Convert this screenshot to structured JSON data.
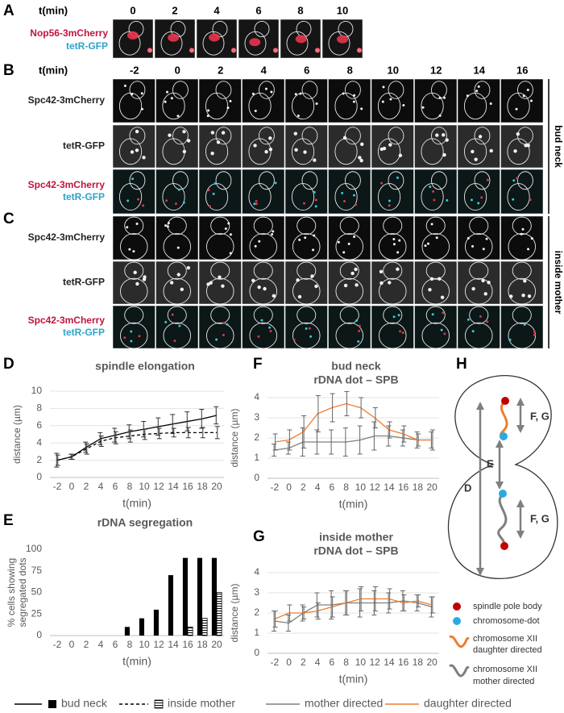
{
  "panels": {
    "A": {
      "letter": "A",
      "time_label": "t(min)",
      "times": [
        0,
        2,
        4,
        6,
        8,
        10
      ],
      "channels": [
        "Nop56-3mCherry",
        "tetR-GFP"
      ]
    },
    "B": {
      "letter": "B",
      "time_label": "t(min)",
      "times": [
        -2,
        0,
        2,
        4,
        6,
        8,
        10,
        12,
        14,
        16
      ],
      "rows": [
        [
          "Spc42-3mCherry"
        ],
        [
          "tetR-GFP"
        ],
        [
          "Spc42-3mCherry",
          "tetR-GFP"
        ]
      ],
      "side_label": "bud neck"
    },
    "C": {
      "letter": "C",
      "rows": [
        [
          "Spc42-3mCherry"
        ],
        [
          "tetR-GFP"
        ],
        [
          "Spc42-3mCherry",
          "tetR-GFP"
        ]
      ],
      "side_label": "inside mother"
    }
  },
  "chart_data": [
    {
      "type": "line",
      "panel": "D",
      "title": "spindle elongation",
      "y_label": [
        "distance (µm)"
      ],
      "x_label": "t(min)",
      "categories": [
        -2,
        0,
        2,
        4,
        6,
        8,
        10,
        12,
        14,
        16,
        18,
        20
      ],
      "ylim": [
        0,
        10
      ],
      "yticks": [
        0,
        2,
        4,
        6,
        8,
        10
      ],
      "grid": true,
      "series": [
        {
          "name": "bud neck",
          "color": "#000000",
          "dash": false,
          "values": [
            2.0,
            2.4,
            3.5,
            4.5,
            4.9,
            5.3,
            5.6,
            5.9,
            6.2,
            6.5,
            6.8,
            7.2
          ],
          "errors": [
            0.8,
            0.3,
            0.6,
            0.7,
            0.8,
            0.8,
            0.9,
            1.0,
            1.1,
            1.1,
            1.1,
            1.0
          ]
        },
        {
          "name": "inside mother",
          "color": "#000000",
          "dash": true,
          "values": [
            2.0,
            2.4,
            3.3,
            4.2,
            4.6,
            4.8,
            5.0,
            5.1,
            5.2,
            5.2,
            5.2,
            5.2
          ],
          "errors": [
            0.6,
            0.3,
            0.6,
            0.6,
            0.7,
            0.7,
            0.6,
            0.6,
            0.5,
            0.6,
            0.6,
            0.7
          ]
        }
      ]
    },
    {
      "type": "bar",
      "panel": "E",
      "title": "rDNA segregation",
      "y_label": [
        "% cells showing",
        "segregated dots"
      ],
      "x_label": "t(min)",
      "categories": [
        -2,
        0,
        2,
        4,
        6,
        8,
        10,
        12,
        14,
        16,
        18,
        20
      ],
      "ylim": [
        0,
        100
      ],
      "yticks": [
        0,
        25,
        50,
        75,
        100
      ],
      "grid": false,
      "series": [
        {
          "color": "#000000",
          "pattern": "solid",
          "values": [
            0,
            0,
            0,
            0,
            0,
            10,
            20,
            30,
            70,
            90,
            90,
            90
          ]
        },
        {
          "color": "#000000",
          "pattern": "hatch",
          "values": [
            0,
            0,
            0,
            0,
            0,
            0,
            0,
            0,
            0,
            10,
            20,
            50
          ]
        }
      ]
    },
    {
      "type": "line",
      "panel": "F",
      "title": "bud neck",
      "subtitle": "rDNA dot – SPB",
      "y_label": [
        "distance (µm)"
      ],
      "x_label": "t(min)",
      "categories": [
        -2,
        0,
        2,
        4,
        6,
        8,
        10,
        12,
        14,
        16,
        18,
        20
      ],
      "ylim": [
        0,
        4
      ],
      "yticks": [
        0,
        1,
        2,
        3,
        4
      ],
      "grid": true,
      "series": [
        {
          "name": "mother directed",
          "color": "#7f7f7f",
          "dash": false,
          "values": [
            1.4,
            1.5,
            1.8,
            1.8,
            1.8,
            1.8,
            1.9,
            2.1,
            2.1,
            2.0,
            1.9,
            1.9
          ],
          "errors": [
            0.3,
            0.3,
            0.7,
            0.6,
            0.6,
            0.7,
            0.7,
            0.7,
            0.5,
            0.4,
            0.4,
            0.4
          ]
        },
        {
          "name": "daughter directed",
          "color": "#ed7d31",
          "dash": false,
          "values": [
            1.8,
            1.9,
            2.3,
            3.2,
            3.5,
            3.7,
            3.5,
            3.0,
            2.4,
            2.2,
            1.9,
            1.9
          ],
          "errors": [
            0.4,
            0.5,
            0.8,
            0.9,
            0.7,
            0.6,
            0.5,
            0.5,
            0.4,
            0.4,
            0.3,
            0.5
          ]
        }
      ]
    },
    {
      "type": "line",
      "panel": "G",
      "title": "inside mother",
      "subtitle": "rDNA dot – SPB",
      "y_label": [
        "distance (µm)"
      ],
      "x_label": "t(min)",
      "categories": [
        -2,
        0,
        2,
        4,
        6,
        8,
        10,
        12,
        14,
        16,
        18,
        20
      ],
      "ylim": [
        0,
        4
      ],
      "yticks": [
        0,
        1,
        2,
        3,
        4
      ],
      "grid": true,
      "series": [
        {
          "color": "#7f7f7f",
          "dash": false,
          "values": [
            1.6,
            1.5,
            2.0,
            2.4,
            2.4,
            2.5,
            2.5,
            2.5,
            2.5,
            2.6,
            2.5,
            2.3
          ],
          "errors": [
            0.5,
            0.4,
            0.4,
            0.6,
            0.7,
            0.6,
            0.7,
            0.6,
            0.5,
            0.5,
            0.4,
            0.5
          ]
        },
        {
          "color": "#ed7d31",
          "dash": false,
          "values": [
            1.7,
            2.0,
            2.0,
            2.1,
            2.3,
            2.5,
            2.7,
            2.7,
            2.7,
            2.5,
            2.6,
            2.4
          ],
          "errors": [
            0.4,
            0.4,
            0.3,
            0.4,
            0.5,
            0.6,
            0.6,
            0.6,
            0.5,
            0.4,
            0.3,
            0.4
          ]
        }
      ]
    }
  ],
  "diagram": {
    "letter": "H",
    "labels": [
      "F, G",
      "E",
      "D",
      "F, G"
    ],
    "legend": [
      [
        "spindle pole body"
      ],
      [
        "chromosome-dot"
      ],
      [
        "chromosome XII",
        "daughter directed"
      ],
      [
        "chromosome XII",
        "mother directed"
      ]
    ]
  }
}
